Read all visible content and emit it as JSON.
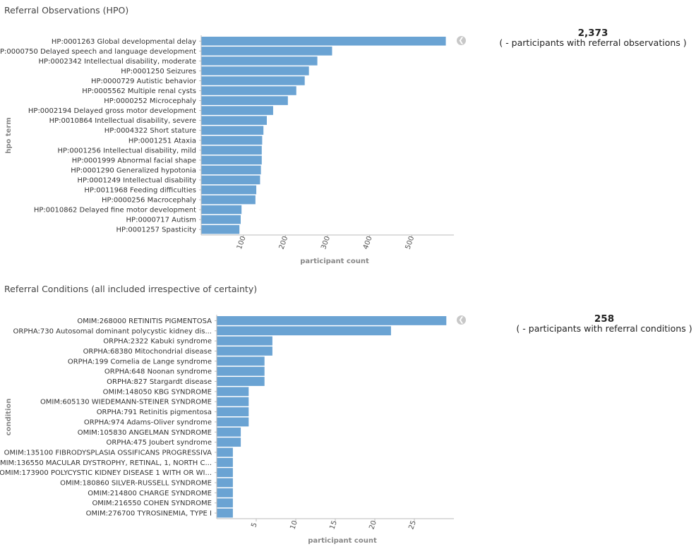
{
  "panels": [
    {
      "title": "Referral Observations (HPO)",
      "metric_value": "2,373",
      "metric_label": "( - participants with referral observations )",
      "collapse_icon": "chevron-left-icon"
    },
    {
      "title": "Referral Conditions (all included irrespective of certainty)",
      "metric_value": "258",
      "metric_label": "( - participants with referral conditions )",
      "collapse_icon": "chevron-left-icon"
    }
  ],
  "chart_data": [
    {
      "type": "bar",
      "orientation": "horizontal",
      "xlabel": "participant count",
      "ylabel": "hpo term",
      "xlim": [
        0,
        600
      ],
      "ticks": [
        100,
        200,
        300,
        400,
        500
      ],
      "bar_color": "#6aa3d3",
      "categories": [
        "HP:0001263 Global developmental delay",
        "HP:0000750 Delayed speech and language development",
        "HP:0002342 Intellectual disability, moderate",
        "HP:0001250 Seizures",
        "HP:0000729 Autistic behavior",
        "HP:0005562 Multiple renal cysts",
        "HP:0000252 Microcephaly",
        "HP:0002194 Delayed gross motor development",
        "HP:0010864 Intellectual disability, severe",
        "HP:0004322 Short stature",
        "HP:0001251 Ataxia",
        "HP:0001256 Intellectual disability, mild",
        "HP:0001999 Abnormal facial shape",
        "HP:0001290 Generalized hypotonia",
        "HP:0001249 Intellectual disability",
        "HP:0011968 Feeding difficulties",
        "HP:0000256 Macrocephaly",
        "HP:0010862 Delayed fine motor development",
        "HP:0000717 Autism",
        "HP:0001257 Spasticity"
      ],
      "values": [
        580,
        310,
        275,
        255,
        245,
        225,
        205,
        170,
        155,
        147,
        144,
        143,
        143,
        141,
        139,
        130,
        128,
        95,
        93,
        90
      ]
    },
    {
      "type": "bar",
      "orientation": "horizontal",
      "xlabel": "participant count",
      "ylabel": "condition",
      "xlim": [
        0,
        30
      ],
      "ticks": [
        5,
        10,
        15,
        20,
        25
      ],
      "bar_color": "#6aa3d3",
      "categories": [
        "OMIM:268000 RETINITIS PIGMENTOSA",
        "ORPHA:730 Autosomal dominant polycystic kidney dis...",
        "ORPHA:2322 Kabuki syndrome",
        "ORPHA:68380 Mitochondrial disease",
        "ORPHA:199 Cornelia de Lange syndrome",
        "ORPHA:648 Noonan syndrome",
        "ORPHA:827 Stargardt disease",
        "OMIM:148050 KBG SYNDROME",
        "OMIM:605130 WIEDEMANN-STEINER SYNDROME",
        "ORPHA:791 Retinitis pigmentosa",
        "ORPHA:974 Adams-Oliver syndrome",
        "OMIM:105830 ANGELMAN SYNDROME",
        "ORPHA:475 Joubert syndrome",
        "OMIM:135100 FIBRODYSPLASIA OSSIFICANS PROGRESSIVA",
        "OMIM:136550 MACULAR DYSTROPHY, RETINAL, 1, NORTH C...",
        "OMIM:173900 POLYCYSTIC KIDNEY DISEASE 1 WITH OR WI...",
        "OMIM:180860 SILVER-RUSSELL SYNDROME",
        "OMIM:214800 CHARGE SYNDROME",
        "OMIM:216550 COHEN SYNDROME",
        "OMIM:276700 TYROSINEMIA, TYPE I"
      ],
      "values": [
        29,
        22,
        7,
        7,
        6,
        6,
        6,
        4,
        4,
        4,
        4,
        3,
        3,
        2,
        2,
        2,
        2,
        2,
        2,
        2
      ]
    }
  ]
}
